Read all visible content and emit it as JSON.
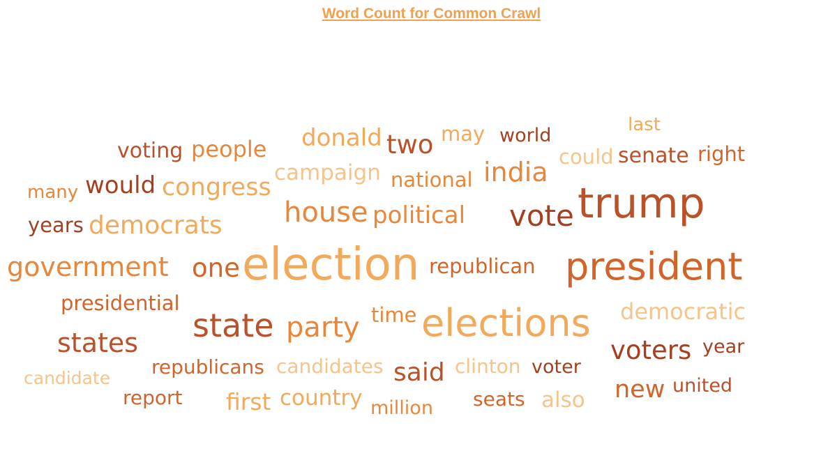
{
  "title": "Word Count for Common Crawl",
  "chart_data": {
    "type": "word_cloud",
    "title": "Word Count for Common Crawl",
    "palette": [
      "#f5c48a",
      "#f2a95a",
      "#e8873a",
      "#d2642a",
      "#b9512a",
      "#a2401f"
    ],
    "words": [
      {
        "text": "trump",
        "color": "#b9512a"
      },
      {
        "text": "president",
        "color": "#d2642a"
      },
      {
        "text": "election",
        "color": "#f2a95a"
      },
      {
        "text": "elections",
        "color": "#f2a95a"
      },
      {
        "text": "state",
        "color": "#b9512a"
      },
      {
        "text": "vote",
        "color": "#a2401f"
      },
      {
        "text": "party",
        "color": "#e8873a"
      },
      {
        "text": "house",
        "color": "#e8873a"
      },
      {
        "text": "voters",
        "color": "#a2401f"
      },
      {
        "text": "states",
        "color": "#b9512a"
      },
      {
        "text": "government",
        "color": "#e8873a"
      },
      {
        "text": "india",
        "color": "#e8873a"
      },
      {
        "text": "democrats",
        "color": "#f2a95a"
      },
      {
        "text": "one",
        "color": "#d2642a"
      },
      {
        "text": "said",
        "color": "#b9512a"
      },
      {
        "text": "new",
        "color": "#d2642a"
      },
      {
        "text": "two",
        "color": "#b9512a"
      },
      {
        "text": "congress",
        "color": "#f2a95a"
      },
      {
        "text": "political",
        "color": "#e8873a"
      },
      {
        "text": "donald",
        "color": "#f2a95a"
      },
      {
        "text": "would",
        "color": "#a2401f"
      },
      {
        "text": "democratic",
        "color": "#f5c48a"
      },
      {
        "text": "first",
        "color": "#f2a95a"
      },
      {
        "text": "also",
        "color": "#f5c48a"
      },
      {
        "text": "people",
        "color": "#e8873a"
      },
      {
        "text": "campaign",
        "color": "#f5c48a"
      },
      {
        "text": "presidential",
        "color": "#d2642a"
      },
      {
        "text": "republican",
        "color": "#d2642a"
      },
      {
        "text": "time",
        "color": "#e8873a"
      },
      {
        "text": "senate",
        "color": "#b9512a"
      },
      {
        "text": "voting",
        "color": "#b9512a"
      },
      {
        "text": "country",
        "color": "#f2a95a"
      },
      {
        "text": "candidates",
        "color": "#f5c48a"
      },
      {
        "text": "clinton",
        "color": "#f5c48a"
      },
      {
        "text": "republicans",
        "color": "#d2642a"
      },
      {
        "text": "national",
        "color": "#e8873a"
      },
      {
        "text": "years",
        "color": "#a2401f"
      },
      {
        "text": "could",
        "color": "#f5c48a"
      },
      {
        "text": "right",
        "color": "#d2642a"
      },
      {
        "text": "may",
        "color": "#f2a95a"
      },
      {
        "text": "year",
        "color": "#a2401f"
      },
      {
        "text": "united",
        "color": "#b9512a"
      },
      {
        "text": "voter",
        "color": "#a2401f"
      },
      {
        "text": "million",
        "color": "#e8873a"
      },
      {
        "text": "report",
        "color": "#d2642a"
      },
      {
        "text": "world",
        "color": "#a2401f"
      },
      {
        "text": "seats",
        "color": "#d2642a"
      },
      {
        "text": "many",
        "color": "#e8873a"
      },
      {
        "text": "candidate",
        "color": "#f5c48a"
      },
      {
        "text": "last",
        "color": "#f2a95a"
      }
    ]
  }
}
